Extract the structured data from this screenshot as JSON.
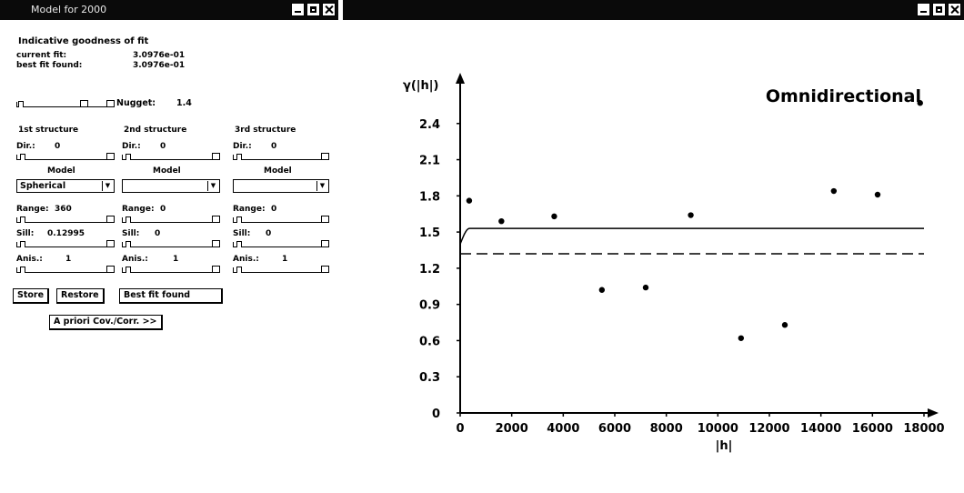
{
  "left_window": {
    "title": "Model for 2000",
    "goodness_heading": "Indicative goodness of fit",
    "current_fit_label": "current fit:",
    "current_fit_value": "3.0976e-01",
    "best_fit_label": "best fit found:",
    "best_fit_value": "3.0976e-01",
    "nugget_label": "Nugget:",
    "nugget_value": "1.4",
    "structures": [
      {
        "heading": "1st structure",
        "dir_label": "Dir.:",
        "dir_value": "0",
        "model_label": "Model",
        "model_value": "Spherical",
        "range_label": "Range:",
        "range_value": "360",
        "sill_label": "Sill:",
        "sill_value": "0.12995",
        "anis_label": "Anis.:",
        "anis_value": "1"
      },
      {
        "heading": "2nd structure",
        "dir_label": "Dir.:",
        "dir_value": "0",
        "model_label": "Model",
        "model_value": "",
        "range_label": "Range:",
        "range_value": "0",
        "sill_label": "Sill:",
        "sill_value": "0",
        "anis_label": "Anis.:",
        "anis_value": "1"
      },
      {
        "heading": "3rd structure",
        "dir_label": "Dir.:",
        "dir_value": "0",
        "model_label": "Model",
        "model_value": "",
        "range_label": "Range:",
        "range_value": "0",
        "sill_label": "Sill:",
        "sill_value": "0",
        "anis_label": "Anis.:",
        "anis_value": "1"
      }
    ],
    "buttons": {
      "store": "Store",
      "restore": "Restore",
      "best_fit": "Best fit found",
      "apriori": "A priori Cov./Corr. >>"
    }
  },
  "right_window": {
    "title": ""
  },
  "chart_data": {
    "type": "scatter",
    "title": "Omnidirectional",
    "ylabel": "γ(|h|)",
    "xlabel": "|h|",
    "xlim": [
      0,
      18000
    ],
    "ylim": [
      0,
      2.7
    ],
    "x_ticks": [
      "0",
      "2000",
      "4000",
      "6000",
      "8000",
      "10000",
      "12000",
      "14000",
      "16000",
      "18000"
    ],
    "y_ticks": [
      "0",
      "0.3",
      "0.6",
      "0.9",
      "1.2",
      "1.5",
      "1.8",
      "2.1",
      "2.4"
    ],
    "points": [
      {
        "x": 350,
        "y": 1.76
      },
      {
        "x": 1600,
        "y": 1.59
      },
      {
        "x": 3650,
        "y": 1.63
      },
      {
        "x": 5500,
        "y": 1.02
      },
      {
        "x": 7200,
        "y": 1.04
      },
      {
        "x": 8950,
        "y": 1.64
      },
      {
        "x": 10900,
        "y": 0.62
      },
      {
        "x": 12600,
        "y": 0.73
      },
      {
        "x": 14500,
        "y": 1.84
      },
      {
        "x": 16200,
        "y": 1.81
      },
      {
        "x": 17850,
        "y": 2.57
      }
    ],
    "model_curve": {
      "nugget": 1.4,
      "sill": 0.12995,
      "range": 360
    },
    "sill_line": 1.32,
    "grid": false,
    "legend": "none"
  }
}
